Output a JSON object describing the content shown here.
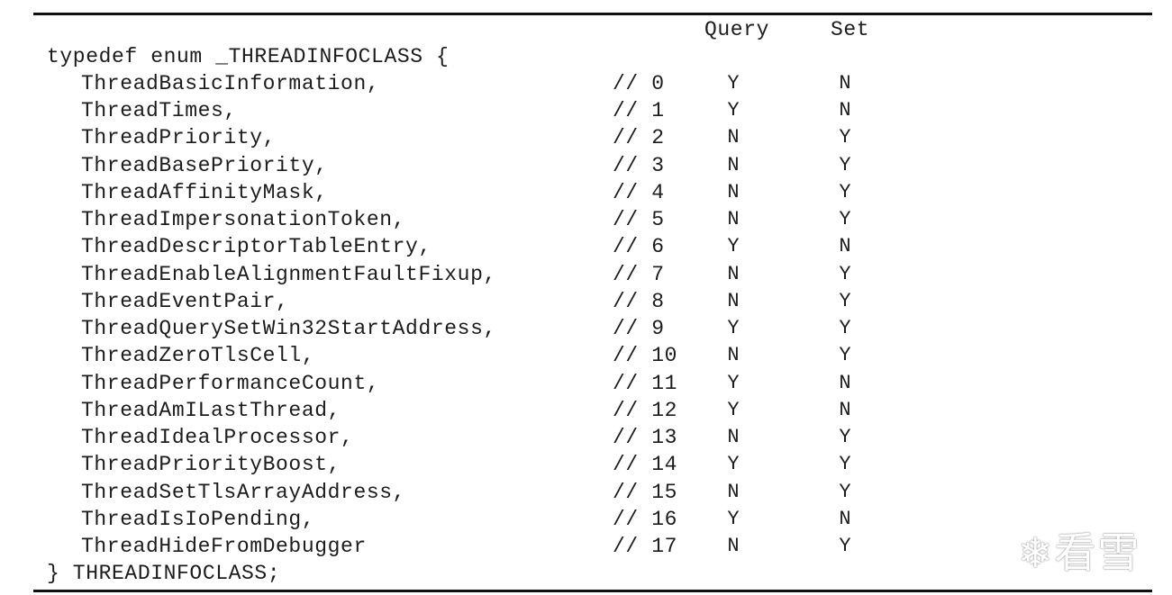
{
  "header": {
    "query": "Query",
    "set": "Set"
  },
  "open_line": "typedef enum _THREADINFOCLASS {",
  "close_line": "} THREADINFOCLASS;",
  "rows": [
    {
      "name": "ThreadBasicInformation,",
      "comment": "// 0",
      "query": "Y",
      "set": "N"
    },
    {
      "name": "ThreadTimes,",
      "comment": "// 1",
      "query": "Y",
      "set": "N"
    },
    {
      "name": "ThreadPriority,",
      "comment": "// 2",
      "query": "N",
      "set": "Y"
    },
    {
      "name": "ThreadBasePriority,",
      "comment": "// 3",
      "query": "N",
      "set": "Y"
    },
    {
      "name": "ThreadAffinityMask,",
      "comment": "// 4",
      "query": "N",
      "set": "Y"
    },
    {
      "name": "ThreadImpersonationToken,",
      "comment": "// 5",
      "query": "N",
      "set": "Y"
    },
    {
      "name": "ThreadDescriptorTableEntry,",
      "comment": "// 6",
      "query": "Y",
      "set": "N"
    },
    {
      "name": "ThreadEnableAlignmentFaultFixup,",
      "comment": "// 7",
      "query": "N",
      "set": "Y"
    },
    {
      "name": "ThreadEventPair,",
      "comment": "// 8",
      "query": "N",
      "set": "Y"
    },
    {
      "name": "ThreadQuerySetWin32StartAddress,",
      "comment": "// 9",
      "query": "Y",
      "set": "Y"
    },
    {
      "name": "ThreadZeroTlsCell,",
      "comment": "// 10",
      "query": "N",
      "set": "Y"
    },
    {
      "name": "ThreadPerformanceCount,",
      "comment": "// 11",
      "query": "Y",
      "set": "N"
    },
    {
      "name": "ThreadAmILastThread,",
      "comment": "// 12",
      "query": "Y",
      "set": "N"
    },
    {
      "name": "ThreadIdealProcessor,",
      "comment": "// 13",
      "query": "N",
      "set": "Y"
    },
    {
      "name": "ThreadPriorityBoost,",
      "comment": "// 14",
      "query": "Y",
      "set": "Y"
    },
    {
      "name": "ThreadSetTlsArrayAddress,",
      "comment": "// 15",
      "query": "N",
      "set": "Y"
    },
    {
      "name": "ThreadIsIoPending,",
      "comment": "// 16",
      "query": "Y",
      "set": "N"
    },
    {
      "name": "ThreadHideFromDebugger",
      "comment": "// 17",
      "query": "N",
      "set": "Y"
    }
  ],
  "watermark": "❄看雪"
}
